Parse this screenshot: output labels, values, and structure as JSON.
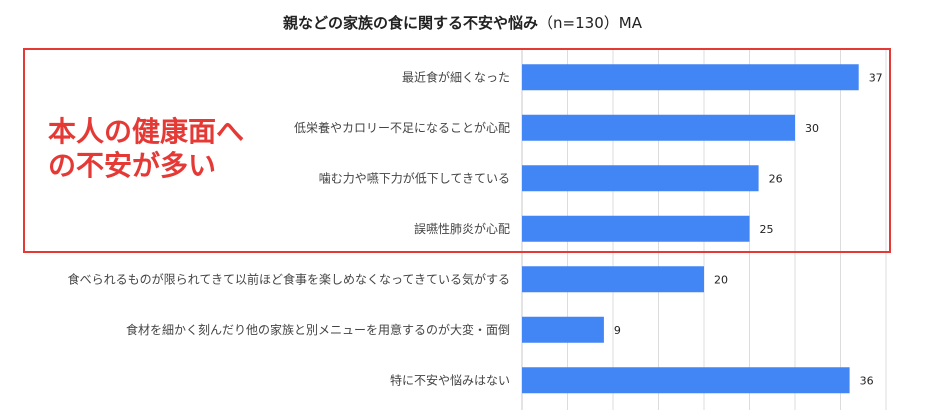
{
  "title": {
    "main": "親などの家族の食に関する不安や悩み",
    "note": "（n=130）MA"
  },
  "annotation": {
    "line1": "本人の健康面へ",
    "line2": "の不安が多い"
  },
  "colors": {
    "bar": "#4285f4",
    "highlight": "#e53935"
  },
  "chart_data": {
    "type": "bar",
    "orientation": "horizontal",
    "title": "親などの家族の食に関する不安や悩み（n=130）MA",
    "categories": [
      "最近食が細くなった",
      "低栄養やカロリー不足になることが心配",
      "噛む力や嚥下力が低下してきている",
      "誤嚥性肺炎が心配",
      "食べられるものが限られてきて以前ほど食事を楽しめなくなってきている気がする",
      "食材を細かく刻んだり他の家族と別メニューを用意するのが大変・面倒",
      "特に不安や悩みはない"
    ],
    "values": [
      37,
      30,
      26,
      25,
      20,
      9,
      36
    ],
    "xlim": [
      0,
      40
    ],
    "grid": true,
    "data_labels": true
  }
}
